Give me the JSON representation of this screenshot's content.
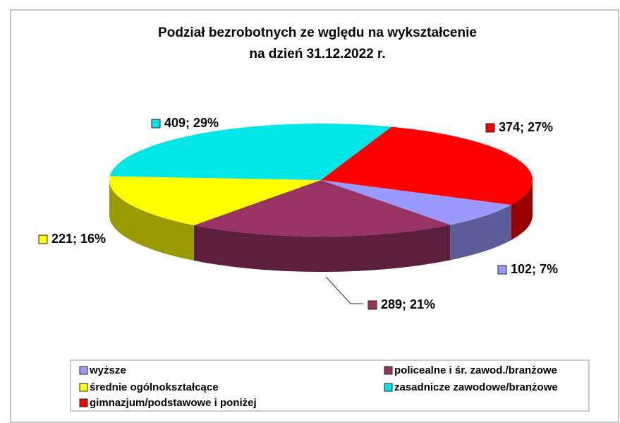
{
  "chart_data": {
    "type": "pie3d",
    "title": [
      "Podział bezrobotnych ze wględu na wykształcenie",
      "na dzień 31.12.2022 r."
    ],
    "categories": [
      "wyższe",
      "policealne i śr. zawod./branżowe",
      "średnie ogólnokształcące",
      "zasadnicze zawodowe/branżowe",
      "gimnazjum/podstawowe i poniżej"
    ],
    "values": [
      102,
      289,
      221,
      409,
      374
    ],
    "value_labels": [
      "102; 7%",
      "289; 21%",
      "221; 16%",
      "409; 29%",
      "374; 27%"
    ],
    "colors": [
      "#9999ff",
      "#993366",
      "#ffff00",
      "#00e5e5",
      "#ff0000"
    ],
    "legend": "bottom"
  }
}
